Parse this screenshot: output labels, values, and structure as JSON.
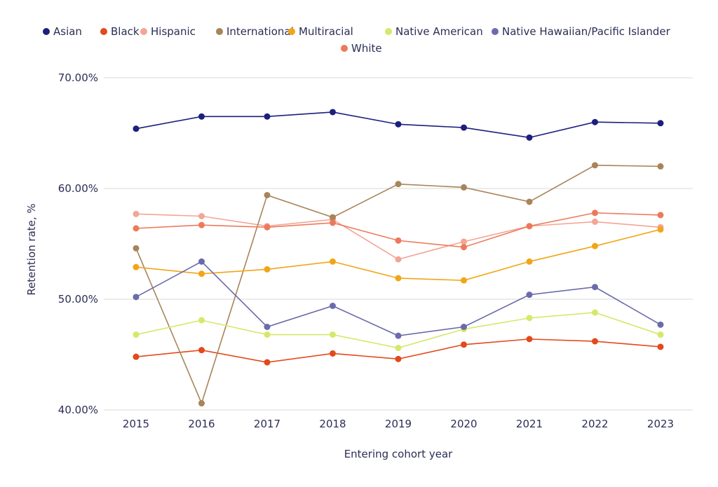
{
  "chart_data": {
    "type": "line",
    "title": "",
    "xlabel": "Entering cohort year",
    "ylabel": "Retention rate, %",
    "ylim": [
      40,
      70
    ],
    "yticks": [
      70,
      60,
      50,
      40
    ],
    "ytick_labels": [
      "70.00%",
      "60.00%",
      "50.00%",
      "40.00%"
    ],
    "x": [
      "2015",
      "2016",
      "2017",
      "2018",
      "2019",
      "2020",
      "2021",
      "2022",
      "2023"
    ],
    "grid": "horizontal",
    "legend_position": "top",
    "series": [
      {
        "name": "Asian",
        "color": "#1b1f7e",
        "values": [
          65.4,
          66.5,
          66.5,
          66.9,
          65.8,
          65.5,
          64.6,
          66.0,
          65.9
        ]
      },
      {
        "name": "Black",
        "color": "#e2491b",
        "values": [
          44.8,
          45.4,
          44.3,
          45.1,
          44.6,
          45.9,
          46.4,
          46.2,
          45.7
        ]
      },
      {
        "name": "Hispanic",
        "color": "#f4a594",
        "values": [
          57.7,
          57.5,
          56.6,
          57.2,
          53.6,
          55.2,
          56.6,
          57.0,
          56.5
        ]
      },
      {
        "name": "International",
        "color": "#a8845a",
        "values": [
          54.6,
          40.6,
          59.4,
          57.4,
          60.4,
          60.1,
          58.8,
          62.1,
          62.0
        ]
      },
      {
        "name": "Multiracial",
        "color": "#f2a516",
        "values": [
          52.9,
          52.3,
          52.7,
          53.4,
          51.9,
          51.7,
          53.4,
          54.8,
          56.3
        ]
      },
      {
        "name": "Native American",
        "color": "#d6e86a",
        "values": [
          46.8,
          48.1,
          46.8,
          46.8,
          45.6,
          47.3,
          48.3,
          48.8,
          46.8
        ]
      },
      {
        "name": "Native Hawaiian/Pacific Islander",
        "color": "#6b6aab",
        "values": [
          50.2,
          53.4,
          47.5,
          49.4,
          46.7,
          47.5,
          50.4,
          51.1,
          47.7
        ]
      },
      {
        "name": "White",
        "color": "#ec7a5a",
        "values": [
          56.4,
          56.7,
          56.5,
          56.9,
          55.3,
          54.7,
          56.6,
          57.8,
          57.6
        ]
      }
    ]
  }
}
